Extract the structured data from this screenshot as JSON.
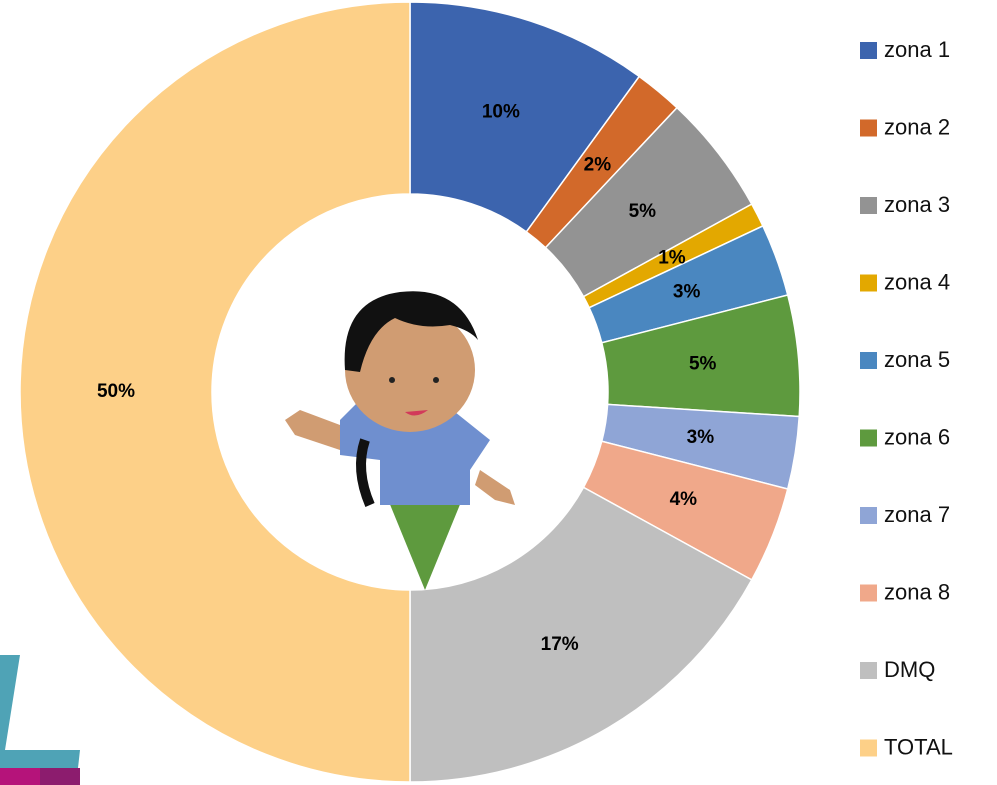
{
  "chart_data": {
    "type": "pie",
    "donut": true,
    "categories": [
      "zona 1",
      "zona 2",
      "zona 3",
      "zona 4",
      "zona 5",
      "zona 6",
      "zona 7",
      "zona 8",
      "DMQ",
      "TOTAL"
    ],
    "values": [
      10,
      2,
      5,
      1,
      3,
      5,
      3,
      4,
      17,
      50
    ],
    "value_labels": [
      "10%",
      "2%",
      "5%",
      "1%",
      "3%",
      "5%",
      "3%",
      "4%",
      "17%",
      "50%"
    ],
    "colors": [
      "#3c64ae",
      "#d2692a",
      "#939393",
      "#e3a800",
      "#4a87c0",
      "#5e9a3e",
      "#8fa5d6",
      "#f0a88a",
      "#bfbfbf",
      "#fdd088"
    ],
    "legend": "right"
  }
}
